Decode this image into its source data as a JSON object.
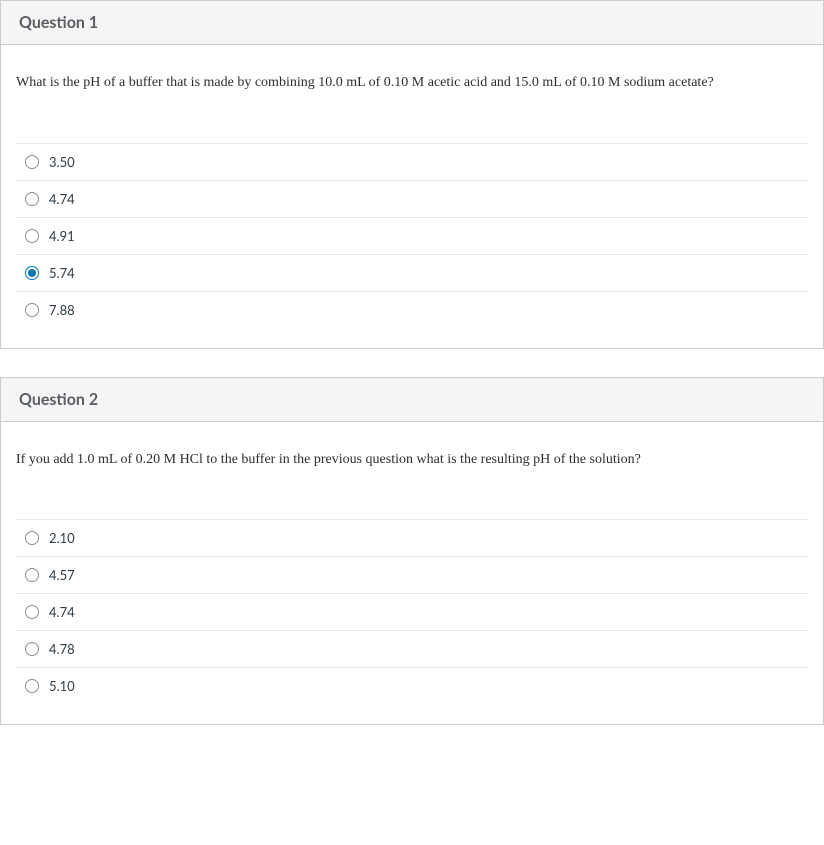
{
  "questions": [
    {
      "title": "Question 1",
      "text": "What is the pH of a buffer that is made by combining 10.0 mL of 0.10 M acetic acid and 15.0 mL of 0.10 M sodium acetate?",
      "answers": [
        {
          "label": "3.50",
          "selected": false
        },
        {
          "label": "4.74",
          "selected": false
        },
        {
          "label": "4.91",
          "selected": false
        },
        {
          "label": "5.74",
          "selected": true
        },
        {
          "label": "7.88",
          "selected": false
        }
      ]
    },
    {
      "title": "Question 2",
      "text": "If you add 1.0 mL of 0.20 M HCl to the buffer in the previous question what is the resulting pH of the solution?",
      "answers": [
        {
          "label": "2.10",
          "selected": false
        },
        {
          "label": "4.57",
          "selected": false
        },
        {
          "label": "4.74",
          "selected": false
        },
        {
          "label": "4.78",
          "selected": false
        },
        {
          "label": "5.10",
          "selected": false
        }
      ]
    }
  ],
  "colors": {
    "header_bg": "#f5f5f5",
    "border": "#c7cdd1",
    "row_border": "#e8e8e8",
    "title_color": "#595e64",
    "text_color": "#2d3b45",
    "radio_border": "#8a8f94",
    "radio_selected": "#0374b5",
    "body_bg": "#ffffff"
  }
}
